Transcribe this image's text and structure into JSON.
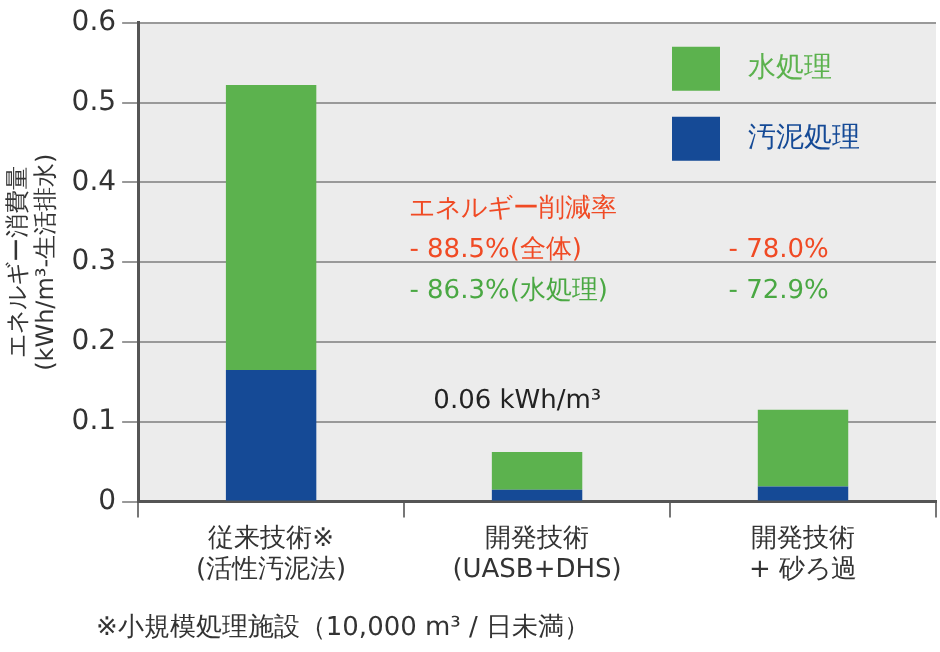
{
  "chart_data": {
    "type": "bar",
    "stacked": true,
    "ylabel": "エネルギー消費量\n(kWh/m³-生活排水)",
    "categories": [
      "従来技術※\n(活性汚泥法)",
      "開発技術\n(UASB+DHS)",
      "開発技術\n+ 砂ろ過"
    ],
    "series": [
      {
        "name": "汚泥処理",
        "color": "#154a96",
        "values": [
          0.165,
          0.015,
          0.019
        ]
      },
      {
        "name": "水処理",
        "color": "#5cb24e",
        "values": [
          0.357,
          0.047,
          0.096
        ]
      }
    ],
    "ylim": [
      0,
      0.6
    ],
    "yticks": [
      {
        "value": 0,
        "label": "0"
      },
      0.1,
      0.2,
      0.3,
      0.4,
      0.5,
      0.6
    ],
    "grid": "y",
    "legend": "top right",
    "annotations": [
      "エネルギー削減率",
      "- 88.5%(全体)",
      "- 86.3%(水処理)",
      "- 78.0%",
      "- 72.9%",
      "0.06 kWh/m³",
      "※小規模処理施設（10,000 m³ / 日未満）"
    ]
  }
}
